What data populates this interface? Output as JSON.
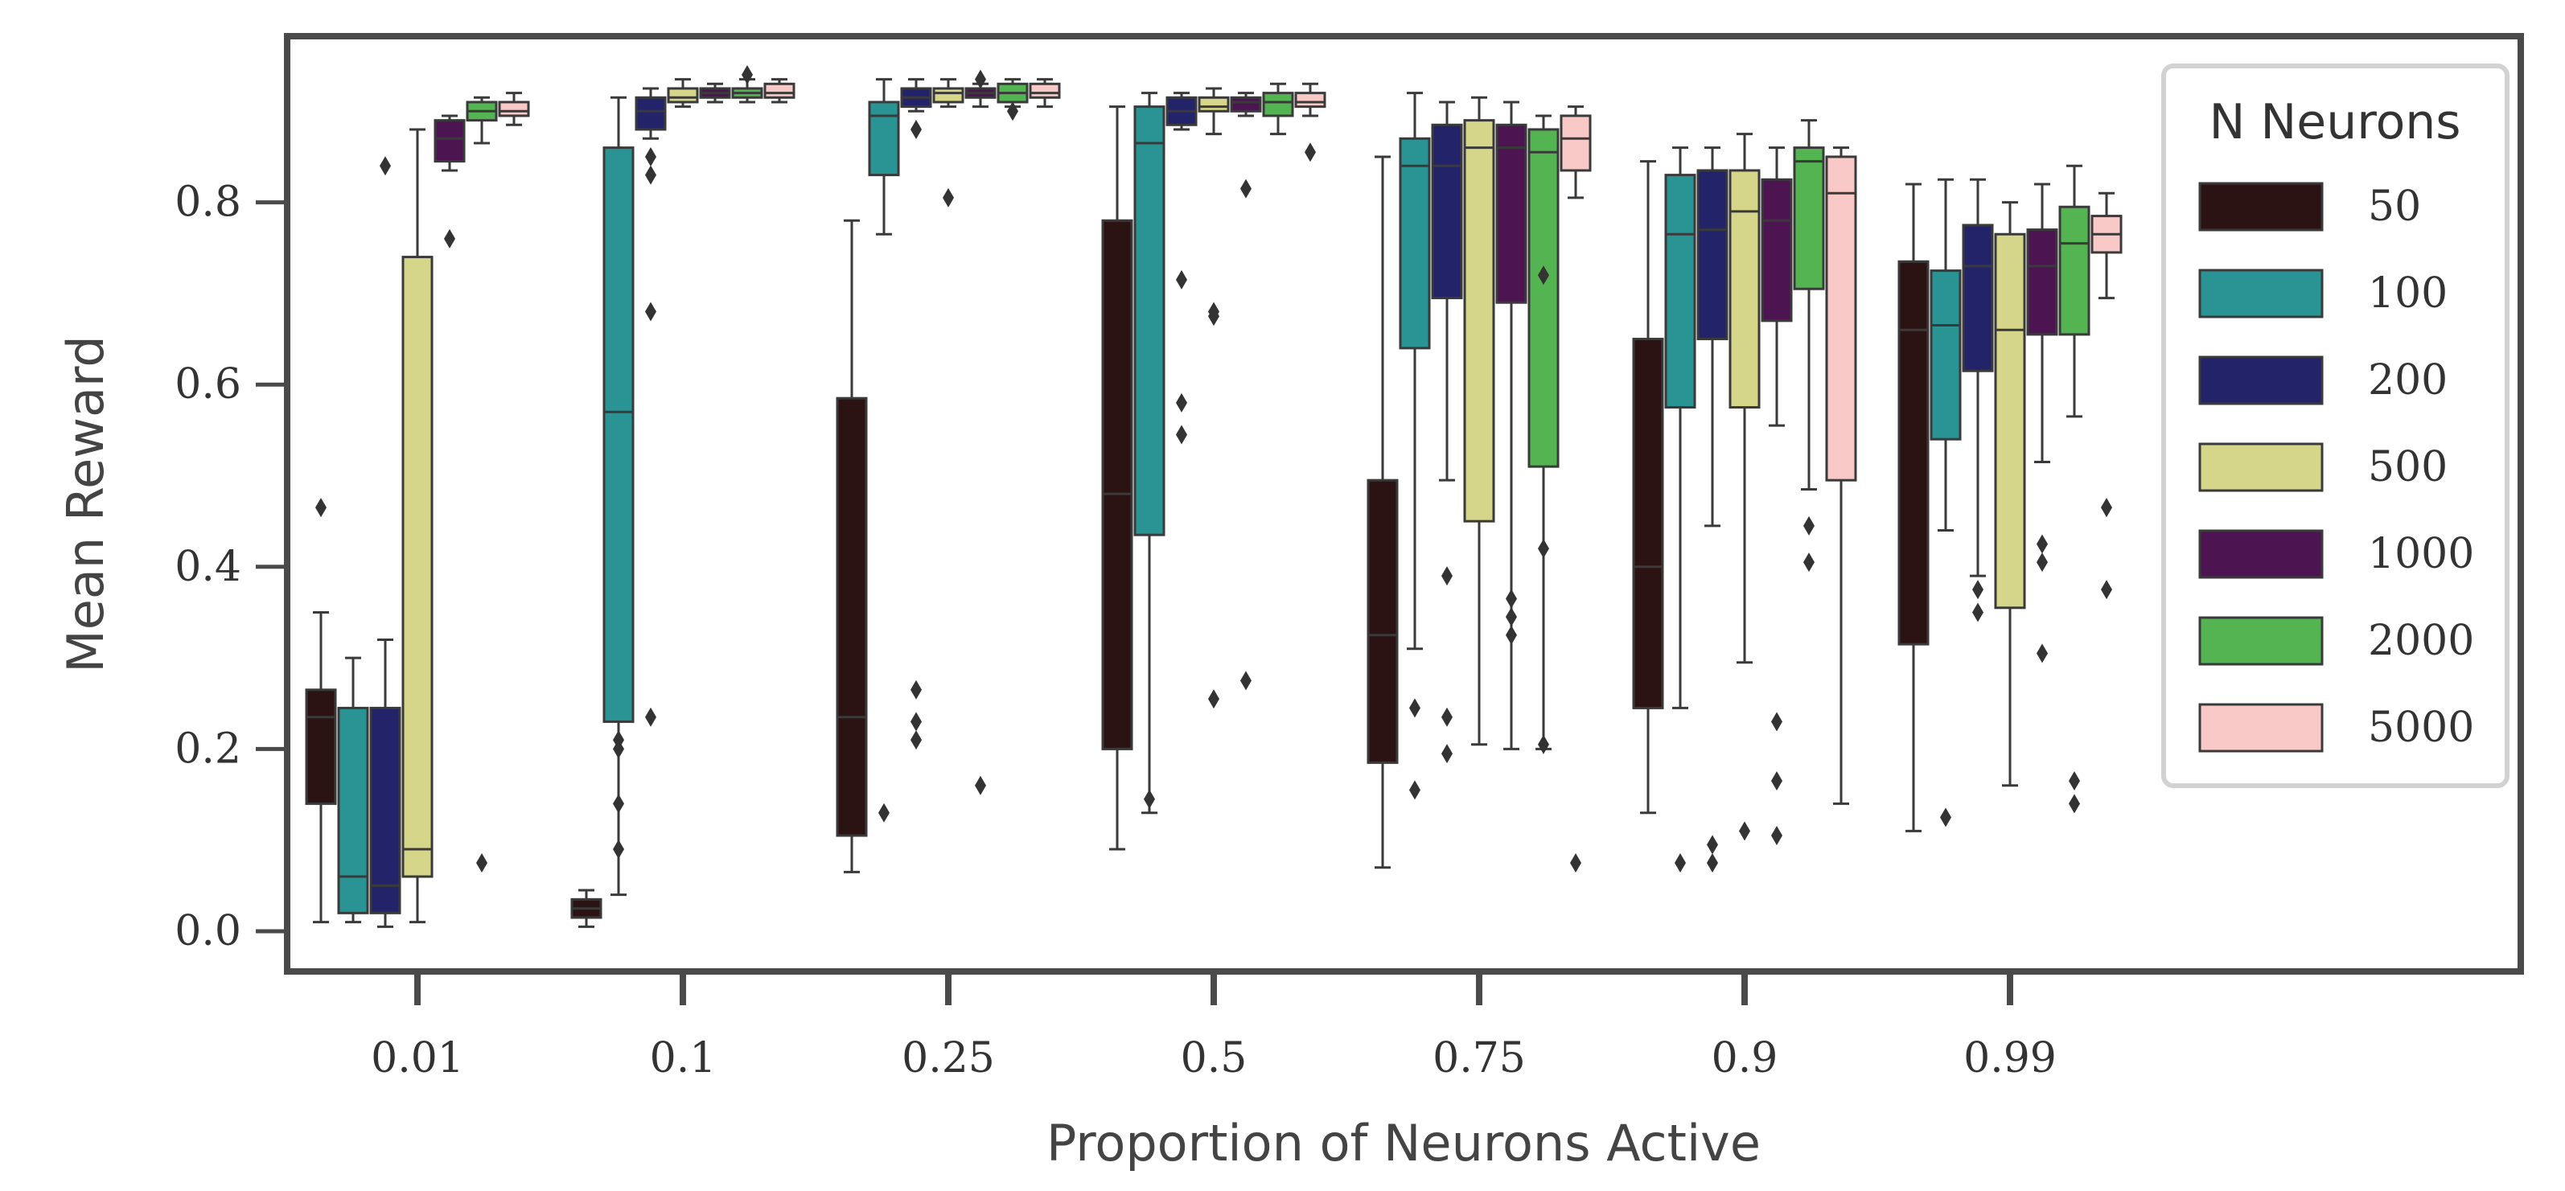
{
  "chart_data": {
    "type": "boxplot",
    "title": "",
    "xlabel": "Proportion of Neurons Active",
    "ylabel": "Mean Reward",
    "ylim": [
      -0.05,
      0.98
    ],
    "yticks": [
      "0.0",
      "0.2",
      "0.4",
      "0.6",
      "0.8"
    ],
    "categories": [
      "0.01",
      "0.1",
      "0.25",
      "0.5",
      "0.75",
      "0.9",
      "0.99"
    ],
    "grid": false,
    "legend": {
      "title": "N Neurons",
      "position": "top-right"
    },
    "series": [
      {
        "name": "50",
        "color": "#2b1213",
        "boxes": [
          {
            "whislo": 0.01,
            "q1": 0.14,
            "med": 0.235,
            "q3": 0.265,
            "whishi": 0.35,
            "fliers": [
              0.465
            ]
          },
          {
            "whislo": 0.005,
            "q1": 0.015,
            "med": 0.025,
            "q3": 0.035,
            "whishi": 0.045,
            "fliers": []
          },
          {
            "whislo": 0.065,
            "q1": 0.105,
            "med": 0.235,
            "q3": 0.585,
            "whishi": 0.78,
            "fliers": []
          },
          {
            "whislo": 0.09,
            "q1": 0.2,
            "med": 0.48,
            "q3": 0.78,
            "whishi": 0.905,
            "fliers": []
          },
          {
            "whislo": 0.07,
            "q1": 0.185,
            "med": 0.325,
            "q3": 0.495,
            "whishi": 0.85,
            "fliers": []
          },
          {
            "whislo": 0.13,
            "q1": 0.245,
            "med": 0.4,
            "q3": 0.65,
            "whishi": 0.845,
            "fliers": []
          },
          {
            "whislo": 0.11,
            "q1": 0.315,
            "med": 0.66,
            "q3": 0.735,
            "whishi": 0.82,
            "fliers": []
          }
        ]
      },
      {
        "name": "100",
        "color": "#2a9495",
        "boxes": [
          {
            "whislo": 0.01,
            "q1": 0.02,
            "med": 0.06,
            "q3": 0.245,
            "whishi": 0.3,
            "fliers": []
          },
          {
            "whislo": 0.04,
            "q1": 0.23,
            "med": 0.57,
            "q3": 0.86,
            "whishi": 0.915,
            "fliers": [
              0.21,
              0.2,
              0.14,
              0.09
            ]
          },
          {
            "whislo": 0.765,
            "q1": 0.83,
            "med": 0.895,
            "q3": 0.91,
            "whishi": 0.935,
            "fliers": [
              0.13
            ]
          },
          {
            "whislo": 0.13,
            "q1": 0.435,
            "med": 0.865,
            "q3": 0.905,
            "whishi": 0.92,
            "fliers": [
              0.145
            ]
          },
          {
            "whislo": 0.31,
            "q1": 0.64,
            "med": 0.84,
            "q3": 0.87,
            "whishi": 0.92,
            "fliers": [
              0.245,
              0.155
            ]
          },
          {
            "whislo": 0.245,
            "q1": 0.575,
            "med": 0.765,
            "q3": 0.83,
            "whishi": 0.86,
            "fliers": [
              0.075
            ]
          },
          {
            "whislo": 0.44,
            "q1": 0.54,
            "med": 0.665,
            "q3": 0.725,
            "whishi": 0.825,
            "fliers": [
              0.125
            ]
          }
        ]
      },
      {
        "name": "200",
        "color": "#23236a",
        "boxes": [
          {
            "whislo": 0.005,
            "q1": 0.02,
            "med": 0.05,
            "q3": 0.245,
            "whishi": 0.32,
            "fliers": [
              0.84
            ]
          },
          {
            "whislo": 0.87,
            "q1": 0.88,
            "med": 0.9,
            "q3": 0.915,
            "whishi": 0.925,
            "fliers": [
              0.235,
              0.83,
              0.85,
              0.68
            ]
          },
          {
            "whislo": 0.9,
            "q1": 0.905,
            "med": 0.915,
            "q3": 0.925,
            "whishi": 0.935,
            "fliers": [
              0.88,
              0.265,
              0.23,
              0.21
            ]
          },
          {
            "whislo": 0.88,
            "q1": 0.885,
            "med": 0.9,
            "q3": 0.915,
            "whishi": 0.92,
            "fliers": [
              0.715,
              0.58,
              0.545
            ]
          },
          {
            "whislo": 0.495,
            "q1": 0.695,
            "med": 0.84,
            "q3": 0.885,
            "whishi": 0.91,
            "fliers": [
              0.39,
              0.235,
              0.195
            ]
          },
          {
            "whislo": 0.445,
            "q1": 0.65,
            "med": 0.77,
            "q3": 0.835,
            "whishi": 0.86,
            "fliers": [
              0.095,
              0.075
            ]
          },
          {
            "whislo": 0.39,
            "q1": 0.615,
            "med": 0.73,
            "q3": 0.775,
            "whishi": 0.825,
            "fliers": [
              0.375,
              0.35
            ]
          }
        ]
      },
      {
        "name": "500",
        "color": "#d6d68a",
        "boxes": [
          {
            "whislo": 0.01,
            "q1": 0.06,
            "med": 0.09,
            "q3": 0.74,
            "whishi": 0.88,
            "fliers": []
          },
          {
            "whislo": 0.905,
            "q1": 0.91,
            "med": 0.915,
            "q3": 0.925,
            "whishi": 0.935,
            "fliers": []
          },
          {
            "whislo": 0.905,
            "q1": 0.91,
            "med": 0.92,
            "q3": 0.925,
            "whishi": 0.935,
            "fliers": [
              0.805
            ]
          },
          {
            "whislo": 0.875,
            "q1": 0.9,
            "med": 0.905,
            "q3": 0.915,
            "whishi": 0.925,
            "fliers": [
              0.68,
              0.675,
              0.255
            ]
          },
          {
            "whislo": 0.205,
            "q1": 0.45,
            "med": 0.86,
            "q3": 0.89,
            "whishi": 0.915,
            "fliers": []
          },
          {
            "whislo": 0.295,
            "q1": 0.575,
            "med": 0.79,
            "q3": 0.835,
            "whishi": 0.875,
            "fliers": [
              0.11
            ]
          },
          {
            "whislo": 0.16,
            "q1": 0.355,
            "med": 0.66,
            "q3": 0.765,
            "whishi": 0.8,
            "fliers": []
          }
        ]
      },
      {
        "name": "1000",
        "color": "#4c1552",
        "boxes": [
          {
            "whislo": 0.835,
            "q1": 0.845,
            "med": 0.87,
            "q3": 0.89,
            "whishi": 0.895,
            "fliers": [
              0.76
            ]
          },
          {
            "whislo": 0.91,
            "q1": 0.915,
            "med": 0.92,
            "q3": 0.925,
            "whishi": 0.93,
            "fliers": []
          },
          {
            "whislo": 0.905,
            "q1": 0.915,
            "med": 0.92,
            "q3": 0.925,
            "whishi": 0.93,
            "fliers": [
              0.935,
              0.16
            ]
          },
          {
            "whislo": 0.895,
            "q1": 0.9,
            "med": 0.91,
            "q3": 0.915,
            "whishi": 0.92,
            "fliers": [
              0.815,
              0.275
            ]
          },
          {
            "whislo": 0.2,
            "q1": 0.69,
            "med": 0.86,
            "q3": 0.885,
            "whishi": 0.91,
            "fliers": [
              0.365,
              0.345,
              0.325
            ]
          },
          {
            "whislo": 0.555,
            "q1": 0.67,
            "med": 0.78,
            "q3": 0.825,
            "whishi": 0.86,
            "fliers": [
              0.23,
              0.165,
              0.105
            ]
          },
          {
            "whislo": 0.515,
            "q1": 0.655,
            "med": 0.73,
            "q3": 0.77,
            "whishi": 0.82,
            "fliers": [
              0.425,
              0.405,
              0.305
            ]
          }
        ]
      },
      {
        "name": "2000",
        "color": "#53b451",
        "boxes": [
          {
            "whislo": 0.865,
            "q1": 0.89,
            "med": 0.9,
            "q3": 0.91,
            "whishi": 0.915,
            "fliers": [
              0.075
            ]
          },
          {
            "whislo": 0.91,
            "q1": 0.915,
            "med": 0.92,
            "q3": 0.925,
            "whishi": 0.935,
            "fliers": [
              0.94
            ]
          },
          {
            "whislo": 0.905,
            "q1": 0.91,
            "med": 0.92,
            "q3": 0.93,
            "whishi": 0.935,
            "fliers": [
              0.9
            ]
          },
          {
            "whislo": 0.875,
            "q1": 0.895,
            "med": 0.91,
            "q3": 0.92,
            "whishi": 0.93,
            "fliers": []
          },
          {
            "whislo": 0.2,
            "q1": 0.51,
            "med": 0.855,
            "q3": 0.88,
            "whishi": 0.895,
            "fliers": [
              0.72,
              0.42,
              0.205
            ]
          },
          {
            "whislo": 0.485,
            "q1": 0.705,
            "med": 0.845,
            "q3": 0.86,
            "whishi": 0.89,
            "fliers": [
              0.445,
              0.405
            ]
          },
          {
            "whislo": 0.565,
            "q1": 0.655,
            "med": 0.755,
            "q3": 0.795,
            "whishi": 0.84,
            "fliers": [
              0.165,
              0.14
            ]
          }
        ]
      },
      {
        "name": "5000",
        "color": "#f9c9c7",
        "boxes": [
          {
            "whislo": 0.885,
            "q1": 0.895,
            "med": 0.9,
            "q3": 0.91,
            "whishi": 0.92,
            "fliers": []
          },
          {
            "whislo": 0.91,
            "q1": 0.915,
            "med": 0.92,
            "q3": 0.93,
            "whishi": 0.935,
            "fliers": []
          },
          {
            "whislo": 0.905,
            "q1": 0.915,
            "med": 0.92,
            "q3": 0.93,
            "whishi": 0.935,
            "fliers": []
          },
          {
            "whislo": 0.895,
            "q1": 0.905,
            "med": 0.91,
            "q3": 0.92,
            "whishi": 0.93,
            "fliers": [
              0.855
            ]
          },
          {
            "whislo": 0.805,
            "q1": 0.835,
            "med": 0.87,
            "q3": 0.895,
            "whishi": 0.905,
            "fliers": [
              0.075
            ]
          },
          {
            "whislo": 0.14,
            "q1": 0.495,
            "med": 0.81,
            "q3": 0.85,
            "whishi": 0.86,
            "fliers": []
          },
          {
            "whislo": 0.695,
            "q1": 0.745,
            "med": 0.765,
            "q3": 0.785,
            "whishi": 0.81,
            "fliers": [
              0.465,
              0.375
            ]
          }
        ]
      }
    ]
  }
}
